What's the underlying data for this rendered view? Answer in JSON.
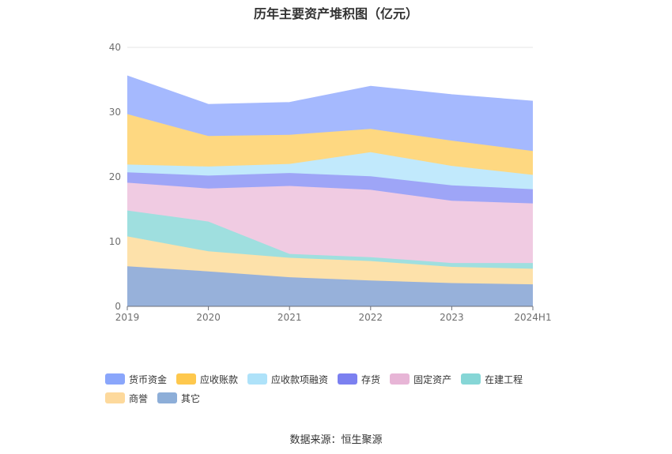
{
  "chart_data": {
    "type": "area",
    "stacked": true,
    "title": "历年主要资产堆积图（亿元）",
    "categories": [
      "2019",
      "2020",
      "2021",
      "2022",
      "2023",
      "2024H1"
    ],
    "ylim": [
      0,
      40
    ],
    "yticks": [
      "0",
      "10",
      "20",
      "30",
      "40"
    ],
    "grid": true,
    "legend_position": "bottom",
    "series": [
      {
        "name": "其它",
        "color": "#97b1da",
        "values": [
          6.2,
          5.4,
          4.5,
          4.0,
          3.6,
          3.4
        ]
      },
      {
        "name": "商誉",
        "color": "#fde1aa",
        "values": [
          4.6,
          3.1,
          3.0,
          3.0,
          2.5,
          2.4
        ]
      },
      {
        "name": "在建工程",
        "color": "#9fdfdf",
        "values": [
          4.0,
          4.6,
          0.6,
          0.6,
          0.6,
          0.9
        ]
      },
      {
        "name": "固定资产",
        "color": "#f0cbe2",
        "values": [
          4.3,
          5.1,
          10.5,
          10.4,
          9.6,
          9.2
        ]
      },
      {
        "name": "存货",
        "color": "#9ea5f7",
        "values": [
          1.6,
          2.0,
          2.0,
          2.1,
          2.4,
          2.2
        ]
      },
      {
        "name": "应收款项融资",
        "color": "#c1e9fc",
        "values": [
          1.2,
          1.4,
          1.4,
          3.7,
          3.0,
          2.2
        ]
      },
      {
        "name": "应收账款",
        "color": "#fed881",
        "values": [
          7.8,
          4.7,
          4.5,
          3.6,
          3.9,
          3.7
        ]
      },
      {
        "name": "货币资金",
        "color": "#a5b9fe",
        "values": [
          5.9,
          4.9,
          5.0,
          6.6,
          7.1,
          7.7
        ]
      }
    ],
    "legend_order": [
      "货币资金",
      "应收账款",
      "应收款项融资",
      "存货",
      "固定资产",
      "在建工程",
      "商誉",
      "其它"
    ],
    "legend_colors": {
      "货币资金": "#8aa6fb",
      "应收账款": "#fec84d",
      "应收款项融资": "#aee2f9",
      "存货": "#7b80f0",
      "固定资产": "#e7b5d6",
      "在建工程": "#86d6d6",
      "商誉": "#fdd99c",
      "其它": "#8daed8"
    }
  },
  "source_text": "数据来源：恒生聚源"
}
